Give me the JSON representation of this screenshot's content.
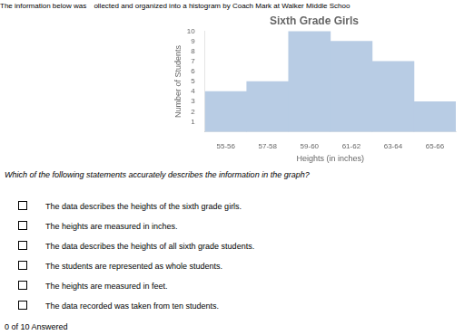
{
  "chart_data": {
    "type": "bar",
    "title": "Sixth Grade Girls",
    "xlabel": "Heights (in inches)",
    "ylabel": "Number of Students",
    "categories": [
      "55-56",
      "57-58",
      "59-60",
      "61-62",
      "63-64",
      "65-66"
    ],
    "values": [
      4,
      5,
      10,
      9,
      7,
      3
    ],
    "color": "#b8cce4",
    "ylim": [
      0,
      10
    ],
    "yticks": [
      1,
      2,
      3,
      4,
      5,
      6,
      7,
      8,
      9,
      10
    ],
    "grid": false,
    "legend": false,
    "annotations": [
      "The information below was ",
      "ollected and organized into a histogram by Coach Mark at Walker Middle Schoo",
      "Which of the following statements accurately describes the information in the graph?",
      "The data describes the heights of the sixth grade girls.",
      "The heights are measured in inches.",
      "The data describes the heights of all sixth grade students.",
      "The students are represented as whole students.",
      "The heights are measured in feet.",
      "The data recorded was taken from ten students.",
      "0 of 10 Answered"
    ]
  }
}
